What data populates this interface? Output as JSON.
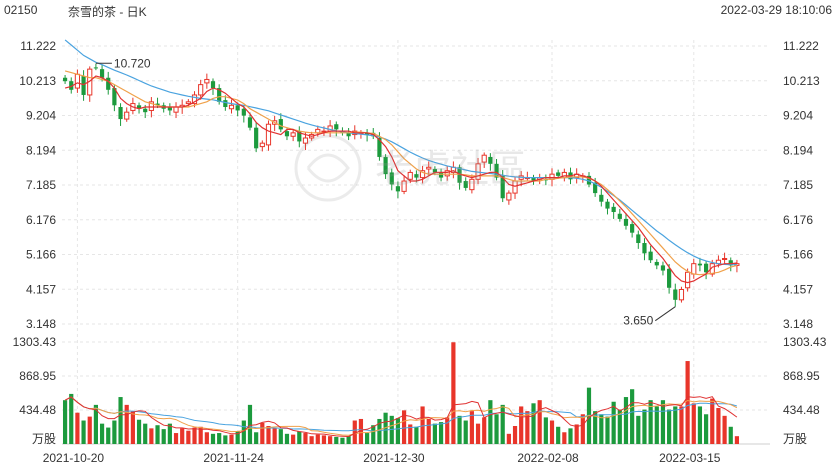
{
  "header": {
    "code": "02150",
    "name": "奈雪的茶 - 日K",
    "datetime": "2022-03-29 18:10:06"
  },
  "watermark": {
    "text": "老虎社區"
  },
  "colors": {
    "up": "#e8352a",
    "down": "#1c9a3d",
    "ma5": "#e03131",
    "ma10": "#f0a14a",
    "ma20": "#4aa3df",
    "grid": "#e6e6e6"
  },
  "chart_data": {
    "type": "candlestick",
    "price_axis": {
      "ticks": [
        "11.222",
        "10.213",
        "9.204",
        "8.194",
        "7.185",
        "6.176",
        "5.166",
        "4.157",
        "3.148"
      ],
      "ylim": [
        3.148,
        11.222
      ]
    },
    "volume_axis": {
      "ticks": [
        "1303.43",
        "868.95",
        "434.48"
      ],
      "unit": "万股",
      "ylim": [
        0,
        1303.43
      ]
    },
    "x_ticks": [
      "2021-10-20",
      "2021-11-24",
      "2021-12-30",
      "2022-02-08",
      "2022-03-15"
    ],
    "annotations": [
      {
        "label": "10.720",
        "kind": "max"
      },
      {
        "label": "3.650",
        "kind": "min"
      }
    ],
    "series": [
      {
        "name": "MA5"
      },
      {
        "name": "MA10"
      },
      {
        "name": "MA20"
      }
    ],
    "closes": [
      10.2,
      9.95,
      10.4,
      9.8,
      10.55,
      10.6,
      10.3,
      9.95,
      9.5,
      9.1,
      9.3,
      9.55,
      9.4,
      9.3,
      9.6,
      9.5,
      9.4,
      9.35,
      9.45,
      9.5,
      9.6,
      9.8,
      10.1,
      10.25,
      10.0,
      9.6,
      9.45,
      9.5,
      9.35,
      9.2,
      8.85,
      8.25,
      8.4,
      8.95,
      9.05,
      8.8,
      8.6,
      8.7,
      8.45,
      8.55,
      8.65,
      8.8,
      8.75,
      8.9,
      8.8,
      8.7,
      8.6,
      8.75,
      8.7,
      8.65,
      8.6,
      8.0,
      7.5,
      7.2,
      7.0,
      7.3,
      7.55,
      7.4,
      7.6,
      7.7,
      7.55,
      7.4,
      7.6,
      7.7,
      7.25,
      7.1,
      7.35,
      7.8,
      8.05,
      7.8,
      7.4,
      6.8,
      6.95,
      7.3,
      7.45,
      7.4,
      7.3,
      7.4,
      7.35,
      7.5,
      7.45,
      7.55,
      7.35,
      7.5,
      7.45,
      7.2,
      6.95,
      6.7,
      6.5,
      6.4,
      6.2,
      6.0,
      5.8,
      5.5,
      5.2,
      5.0,
      4.85,
      4.7,
      4.2,
      3.85,
      4.15,
      4.65,
      4.9,
      4.85,
      4.65,
      4.9,
      5.0,
      5.05,
      4.85,
      4.9
    ],
    "volumes": [
      560,
      640,
      400,
      300,
      350,
      500,
      260,
      210,
      300,
      600,
      500,
      420,
      310,
      260,
      200,
      240,
      190,
      260,
      140,
      200,
      170,
      210,
      220,
      150,
      130,
      140,
      110,
      120,
      160,
      300,
      500,
      150,
      270,
      230,
      200,
      190,
      130,
      120,
      160,
      140,
      100,
      120,
      110,
      100,
      90,
      80,
      100,
      300,
      320,
      140,
      240,
      320,
      400,
      360,
      330,
      430,
      250,
      220,
      480,
      320,
      260,
      280,
      340,
      1300,
      360,
      300,
      420,
      260,
      340,
      560,
      380,
      500,
      130,
      230,
      480,
      420,
      520,
      560,
      340,
      300,
      220,
      150,
      200,
      250,
      380,
      720,
      420,
      380,
      350,
      540,
      440,
      600,
      700,
      360,
      440,
      560,
      480,
      560,
      440,
      480,
      480,
      1060,
      520,
      480,
      380,
      580,
      460,
      360,
      220,
      100
    ],
    "ma5": [
      10.0,
      10.05,
      10.15,
      10.1,
      10.2,
      10.35,
      10.3,
      10.2,
      10.0,
      9.7,
      9.55,
      9.45,
      9.4,
      9.45,
      9.45,
      9.45,
      9.45,
      9.45,
      9.45,
      9.45,
      9.5,
      9.6,
      9.7,
      9.9,
      10.0,
      9.95,
      9.85,
      9.7,
      9.55,
      9.45,
      9.25,
      9.0,
      8.85,
      8.75,
      8.7,
      8.65,
      8.8,
      8.8,
      8.7,
      8.65,
      8.6,
      8.65,
      8.7,
      8.75,
      8.75,
      8.75,
      8.75,
      8.7,
      8.7,
      8.7,
      8.65,
      8.5,
      8.3,
      8.0,
      7.6,
      7.45,
      7.3,
      7.3,
      7.35,
      7.45,
      7.55,
      7.55,
      7.55,
      7.6,
      7.5,
      7.45,
      7.4,
      7.45,
      7.5,
      7.55,
      7.55,
      7.4,
      7.2,
      7.15,
      7.2,
      7.25,
      7.3,
      7.35,
      7.4,
      7.4,
      7.4,
      7.45,
      7.45,
      7.5,
      7.45,
      7.4,
      7.3,
      7.15,
      6.95,
      6.75,
      6.55,
      6.35,
      6.15,
      5.95,
      5.7,
      5.45,
      5.25,
      5.05,
      4.8,
      4.55,
      4.4,
      4.35,
      4.4,
      4.5,
      4.6,
      4.8,
      4.85,
      4.9,
      4.9,
      4.92
    ],
    "ma10": [
      10.5,
      10.45,
      10.4,
      10.35,
      10.3,
      10.3,
      10.25,
      10.2,
      10.1,
      10.0,
      9.9,
      9.8,
      9.7,
      9.6,
      9.55,
      9.5,
      9.45,
      9.45,
      9.45,
      9.45,
      9.45,
      9.5,
      9.55,
      9.6,
      9.7,
      9.75,
      9.75,
      9.7,
      9.65,
      9.55,
      9.4,
      9.3,
      9.2,
      9.1,
      9.0,
      8.9,
      8.85,
      8.8,
      8.75,
      8.72,
      8.7,
      8.7,
      8.7,
      8.7,
      8.7,
      8.7,
      8.7,
      8.72,
      8.72,
      8.7,
      8.68,
      8.6,
      8.5,
      8.35,
      8.15,
      7.95,
      7.8,
      7.65,
      7.55,
      7.5,
      7.5,
      7.5,
      7.5,
      7.5,
      7.5,
      7.48,
      7.45,
      7.45,
      7.45,
      7.45,
      7.45,
      7.4,
      7.35,
      7.3,
      7.3,
      7.3,
      7.3,
      7.3,
      7.35,
      7.35,
      7.38,
      7.4,
      7.42,
      7.42,
      7.42,
      7.38,
      7.3,
      7.2,
      7.05,
      6.9,
      6.72,
      6.55,
      6.35,
      6.15,
      5.95,
      5.75,
      5.55,
      5.35,
      5.15,
      4.95,
      4.8,
      4.68,
      4.6,
      4.58,
      4.6,
      4.62,
      4.65,
      4.72,
      4.8,
      4.85
    ],
    "ma20": [
      11.4,
      11.25,
      11.1,
      10.95,
      10.85,
      10.75,
      10.68,
      10.6,
      10.52,
      10.45,
      10.38,
      10.3,
      10.22,
      10.14,
      10.06,
      10.0,
      9.94,
      9.88,
      9.84,
      9.8,
      9.76,
      9.73,
      9.7,
      9.68,
      9.66,
      9.62,
      9.58,
      9.55,
      9.52,
      9.5,
      9.46,
      9.42,
      9.38,
      9.34,
      9.28,
      9.22,
      9.16,
      9.1,
      9.04,
      8.98,
      8.93,
      8.88,
      8.84,
      8.8,
      8.76,
      8.73,
      8.7,
      8.68,
      8.66,
      8.64,
      8.62,
      8.58,
      8.52,
      8.44,
      8.34,
      8.24,
      8.14,
      8.05,
      7.97,
      7.9,
      7.84,
      7.79,
      7.74,
      7.7,
      7.66,
      7.62,
      7.58,
      7.56,
      7.54,
      7.52,
      7.5,
      7.47,
      7.44,
      7.42,
      7.41,
      7.4,
      7.4,
      7.4,
      7.4,
      7.4,
      7.4,
      7.4,
      7.4,
      7.38,
      7.35,
      7.3,
      7.22,
      7.12,
      7.0,
      6.88,
      6.75,
      6.6,
      6.45,
      6.3,
      6.15,
      6.0,
      5.85,
      5.72,
      5.58,
      5.45,
      5.33,
      5.22,
      5.12,
      5.04,
      4.98,
      4.93,
      4.9,
      4.88,
      4.87,
      4.87
    ]
  }
}
